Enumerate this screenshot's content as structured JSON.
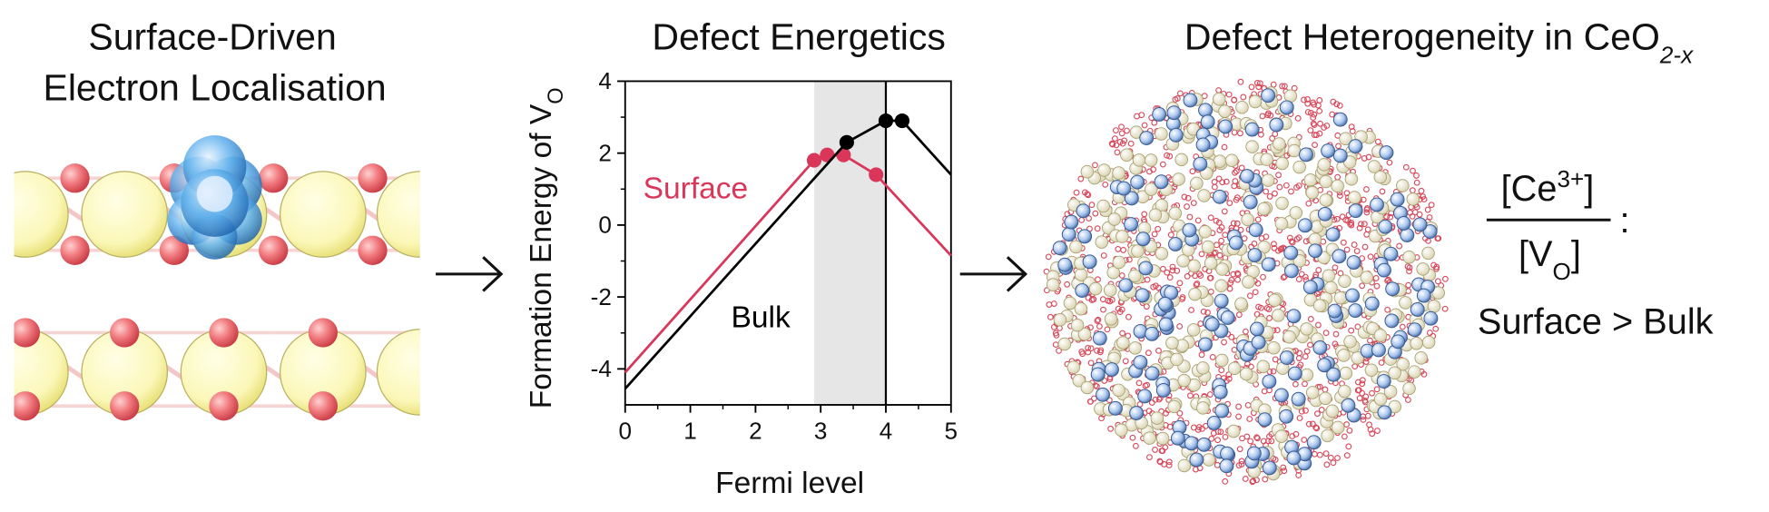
{
  "left_panel": {
    "title_lines": [
      "Surface-Driven",
      "Electron Localisation"
    ]
  },
  "chart_data": {
    "type": "line",
    "title": "Defect Energetics",
    "xlabel": "Fermi level",
    "ylabel": "Formation Energy of V",
    "ylabel_sub": "O",
    "xlim": [
      0,
      5
    ],
    "ylim": [
      -5,
      4
    ],
    "xticks": [
      0,
      1,
      2,
      3,
      4,
      5
    ],
    "yticks": [
      -4,
      -2,
      0,
      2,
      4
    ],
    "shaded_region": [
      2.9,
      4.0
    ],
    "vline": 4.0,
    "series": [
      {
        "name": "Surface",
        "color": "#d9365a",
        "x": [
          0,
          2.9,
          3.1,
          3.35,
          3.85,
          5
        ],
        "values": [
          -4.1,
          1.8,
          1.95,
          1.95,
          1.4,
          -0.85
        ]
      },
      {
        "name": "Bulk",
        "color": "#000000",
        "x": [
          0,
          3.4,
          4.0,
          4.25,
          5
        ],
        "values": [
          -4.55,
          2.3,
          2.9,
          2.9,
          1.4
        ]
      }
    ]
  },
  "right_panel": {
    "title": "Defect Heterogeneity in CeO",
    "title_sub": "2-x",
    "numerator": "[Ce",
    "numerator_sup": "3+",
    "numerator_end": "]",
    "denominator": "[V",
    "denominator_sub": "O",
    "denominator_end": "]",
    "colon": ":",
    "comparison": "Surface > Bulk"
  }
}
